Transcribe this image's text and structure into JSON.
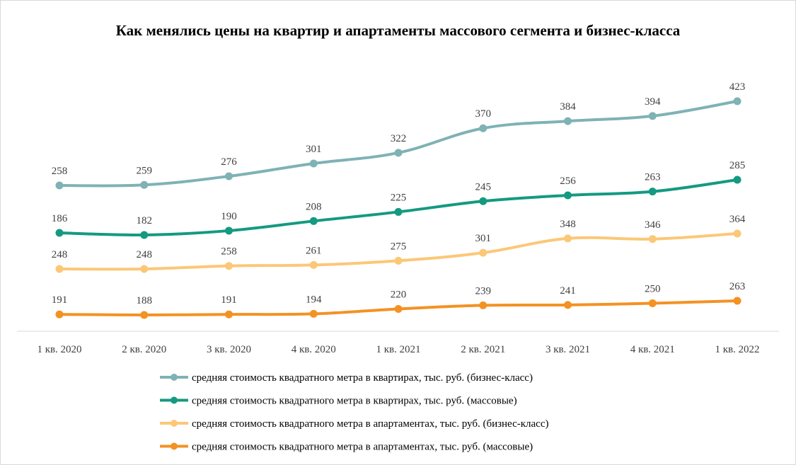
{
  "chart_data": {
    "type": "line",
    "title": "Как менялись цены на квартир и апартаменты  массового сегмента  и бизнес-класса",
    "xlabel": "",
    "ylabel": "",
    "grid": false,
    "legend_position": "bottom",
    "categories": [
      "1 кв. 2020",
      "2 кв. 2020",
      "3 кв. 2020",
      "4 кв. 2020",
      "1 кв. 2021",
      "2 кв. 2021",
      "3 кв. 2021",
      "4 кв. 2021",
      "1 кв. 2022"
    ],
    "series": [
      {
        "name": "средняя стоимость квадратного метра в квартирах, тыс. руб. (бизнес-класс)",
        "color": "#7fb2b5",
        "values": [
          258,
          259,
          276,
          301,
          322,
          370,
          384,
          394,
          423
        ]
      },
      {
        "name": "средняя стоимость квадратного метра в квартирах, тыс. руб. (массовые)",
        "color": "#149a80",
        "values": [
          186,
          182,
          190,
          208,
          225,
          245,
          256,
          263,
          285
        ]
      },
      {
        "name": "средняя стоимость квадратного метра в апартаментах,  тыс. руб. (бизнес-класс)",
        "color": "#fcc777",
        "values": [
          248,
          248,
          258,
          261,
          275,
          301,
          348,
          346,
          364
        ]
      },
      {
        "name": "средняя стоимость квадратного метра в апартаментах,  тыс. руб. (массовые)",
        "color": "#f39223",
        "values": [
          191,
          188,
          191,
          194,
          220,
          239,
          241,
          250,
          263
        ]
      }
    ]
  }
}
